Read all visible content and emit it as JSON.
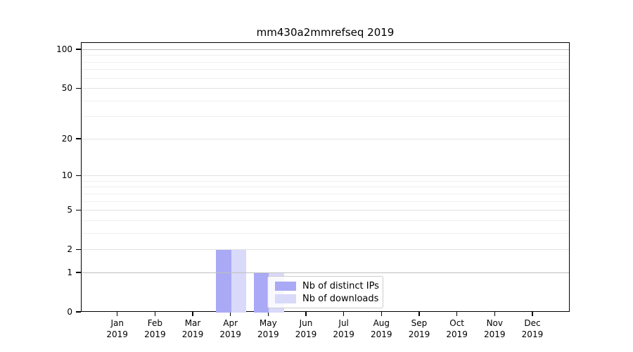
{
  "chart_data": {
    "type": "bar",
    "title": "mm430a2mmrefseq 2019",
    "year": "2019",
    "categories": [
      "Jan",
      "Feb",
      "Mar",
      "Apr",
      "May",
      "Jun",
      "Jul",
      "Aug",
      "Sep",
      "Oct",
      "Nov",
      "Dec"
    ],
    "series": [
      {
        "name": "Nb of distinct IPs",
        "color": "#a9a9f5",
        "values": [
          0,
          0,
          0,
          2,
          1,
          0,
          0,
          0,
          0,
          0,
          0,
          0
        ]
      },
      {
        "name": "Nb of downloads",
        "color": "#d9d9fa",
        "values": [
          0,
          0,
          0,
          2,
          1,
          0,
          0,
          0,
          0,
          0,
          0,
          0
        ]
      }
    ],
    "xlabel": "",
    "ylabel": "",
    "yscale": "log1p",
    "ylim": [
      0,
      113
    ],
    "yticks": [
      0,
      1,
      2,
      5,
      10,
      20,
      50,
      100
    ],
    "gridline_values": [
      1,
      2,
      3,
      4,
      5,
      6,
      7,
      8,
      9,
      10,
      20,
      30,
      40,
      50,
      60,
      70,
      80,
      90,
      100
    ],
    "gridline_emphasis": [
      1,
      100
    ],
    "grid": true,
    "legend_position": "inside lower-center",
    "colors": {
      "axis": "#000000",
      "grid_minor": "#efefef",
      "grid_major": "#e2e2e2",
      "grid_emphasis": "#bfbfbf",
      "legend_border": "#cccccc"
    }
  }
}
